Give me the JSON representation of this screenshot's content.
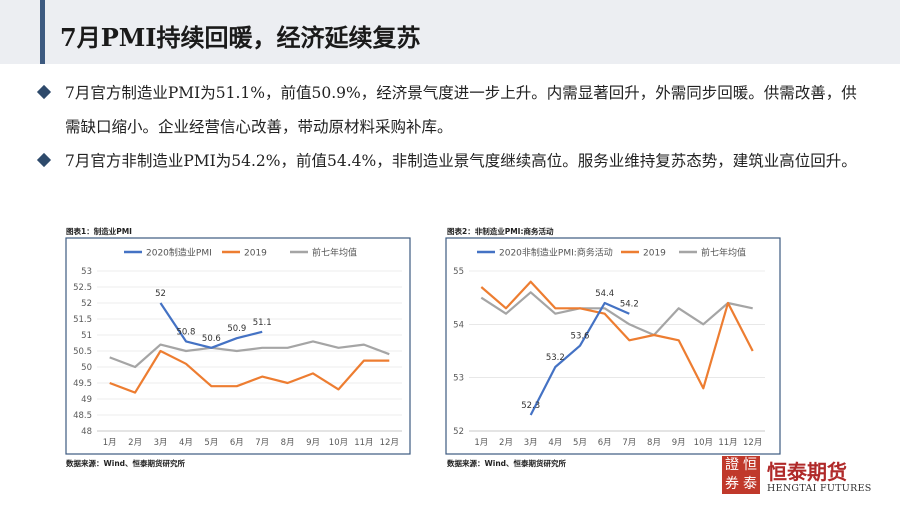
{
  "header": {
    "title": "7月PMI持续回暖，经济延续复苏"
  },
  "bullets": [
    "7月官方制造业PMI为51.1%，前值50.9%，经济景气度进一步上升。内需显著回升，外需同步回暖。供需改善，供需缺口缩小。企业经营信心改善，带动原材料采购补库。",
    "7月官方非制造业PMI为54.2%，前值54.4%，非制造业景气度继续高位。服务业维持复苏态势，建筑业高位回升。"
  ],
  "brand": {
    "name": "恒泰期货",
    "english": "HENGTAI FUTURES",
    "seal_chars": [
      "恒",
      "泰",
      "證",
      "券"
    ]
  },
  "colors": {
    "blue": "#4472c4",
    "orange": "#ed7d31",
    "gray": "#a5a5a5",
    "frame": "#3d5a80"
  },
  "chart_data": [
    {
      "type": "line",
      "title": "图表1：制造业PMI",
      "source": "数据来源：Wind、恒泰期货研究所",
      "categories": [
        "1月",
        "2月",
        "3月",
        "4月",
        "5月",
        "6月",
        "7月",
        "8月",
        "9月",
        "10月",
        "11月",
        "12月"
      ],
      "ylim": [
        48,
        53
      ],
      "yticks": [
        "48",
        "48.5",
        "49",
        "49.5",
        "50",
        "50.5",
        "51",
        "51.5",
        "52",
        "52.5",
        "53"
      ],
      "series": [
        {
          "name": "2020制造业PMI",
          "color": "#4472c4",
          "values": [
            null,
            null,
            52,
            50.8,
            50.6,
            50.9,
            51.1,
            null,
            null,
            null,
            null,
            null
          ],
          "labels": [
            null,
            null,
            "52",
            "50.8",
            "50.6",
            "50.9",
            "51.1",
            null,
            null,
            null,
            null,
            null
          ]
        },
        {
          "name": "2019",
          "color": "#ed7d31",
          "values": [
            49.5,
            49.2,
            50.5,
            50.1,
            49.4,
            49.4,
            49.7,
            49.5,
            49.8,
            49.3,
            50.2,
            50.2
          ]
        },
        {
          "name": "前七年均值",
          "color": "#a5a5a5",
          "values": [
            50.3,
            50.0,
            50.7,
            50.5,
            50.6,
            50.5,
            50.6,
            50.6,
            50.8,
            50.6,
            50.7,
            50.4
          ]
        }
      ]
    },
    {
      "type": "line",
      "title": "图表2：非制造业PMI:商务活动",
      "source": "数据来源：Wind、恒泰期货研究所",
      "categories": [
        "1月",
        "2月",
        "3月",
        "4月",
        "5月",
        "6月",
        "7月",
        "8月",
        "9月",
        "10月",
        "11月",
        "12月"
      ],
      "ylim": [
        52,
        55
      ],
      "yticks": [
        "52",
        "53",
        "54",
        "55"
      ],
      "series": [
        {
          "name": "2020非制造业PMI:商务活动",
          "color": "#4472c4",
          "values": [
            null,
            null,
            52.3,
            53.2,
            53.6,
            54.4,
            54.2,
            null,
            null,
            null,
            null,
            null
          ],
          "labels": [
            null,
            null,
            "52.3",
            "53.2",
            "53.6",
            "54.4",
            "54.2",
            null,
            null,
            null,
            null,
            null
          ]
        },
        {
          "name": "2019",
          "color": "#ed7d31",
          "values": [
            54.7,
            54.3,
            54.8,
            54.3,
            54.3,
            54.2,
            53.7,
            53.8,
            53.7,
            52.8,
            54.4,
            53.5
          ]
        },
        {
          "name": "前七年均值",
          "color": "#a5a5a5",
          "values": [
            54.5,
            54.2,
            54.6,
            54.2,
            54.3,
            54.3,
            54.0,
            53.8,
            54.3,
            54.0,
            54.4,
            54.3
          ]
        }
      ]
    }
  ]
}
